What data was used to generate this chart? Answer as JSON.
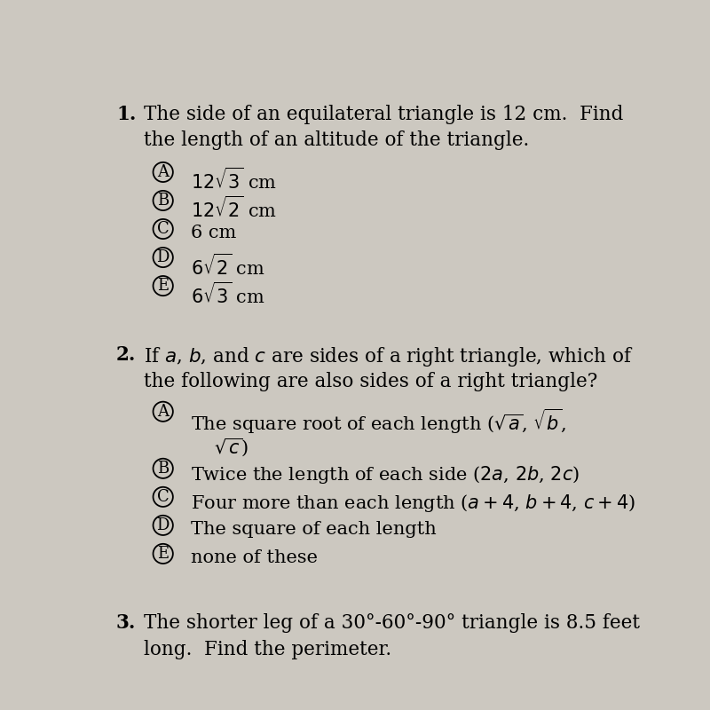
{
  "background_color": "#ccc8c0",
  "text_color": "#000000",
  "q1_number": "1.",
  "q1_text_line1": "The side of an equilateral triangle is 12 cm.  Find",
  "q1_text_line2": "the length of an altitude of the triangle.",
  "q1_options_labels": [
    "A",
    "B",
    "C",
    "D",
    "E"
  ],
  "q1_options_text": [
    "$12\\sqrt{3}$ cm",
    "$12\\sqrt{2}$ cm",
    "6 cm",
    "$6\\sqrt{2}$ cm",
    "$6\\sqrt{3}$ cm"
  ],
  "q2_number": "2.",
  "q2_text_line1": "If $a$, $b$, and $c$ are sides of a right triangle, which of",
  "q2_text_line2": "the following are also sides of a right triangle?",
  "q2_options_labels": [
    "A",
    "B",
    "C",
    "D",
    "E"
  ],
  "q2_options_text_line1": [
    "The square root of each length ($\\sqrt{a}$, $\\sqrt{b}$,",
    "Twice the length of each side ($2a$, $2b$, $2c$)",
    "Four more than each length ($a + 4$, $b + 4$, $c + 4$)",
    "The square of each length",
    "none of these"
  ],
  "q2_option_A_line2": "    $\\sqrt{c}$)",
  "q3_number": "3.",
  "q3_text_line1": "The shorter leg of a 30°-60°-90° triangle is 8.5 feet",
  "q3_text_line2": "long.  Find the perimeter."
}
